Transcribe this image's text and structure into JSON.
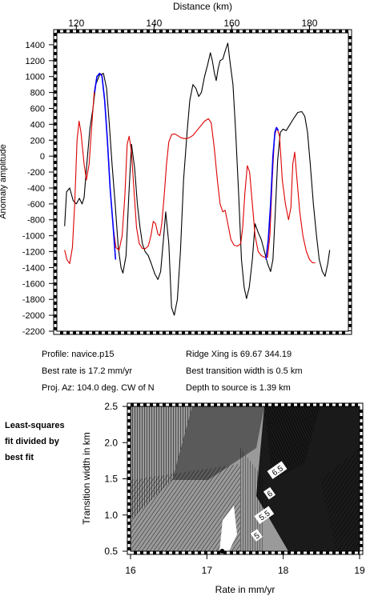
{
  "info": {
    "profile": "Profile: navice.p15",
    "best_rate": "Best rate is 17.2 mm/yr",
    "proj_az": "Proj. Az: 104.0 deg. CW of N",
    "ridge_xing": "Ridge Xing is 69.67 344.19",
    "best_width": "Best transition width is 0.5 km",
    "depth": "Depth to source is    1.39 km"
  },
  "side_note": {
    "line1": "Least-squares",
    "line2": "fit divided by",
    "line3": "best fit"
  },
  "colors": {
    "observed": "#000000",
    "model": "#dd0000",
    "segment": "#0000ff",
    "axis": "#000000"
  },
  "chart_data": [
    {
      "type": "line",
      "xlabel": "Distance (km)",
      "ylabel": "Anomaly amplitude",
      "xlim": [
        115,
        190
      ],
      "ylim": [
        -2200,
        1550
      ],
      "xticks": [
        120,
        140,
        160,
        180
      ],
      "yticks": [
        1400,
        1200,
        1000,
        800,
        600,
        400,
        200,
        0,
        -200,
        -400,
        -600,
        -800,
        -1000,
        -1200,
        -1400,
        -1600,
        -1800,
        -2000,
        -2200
      ],
      "x_axis_position": "top",
      "series": [
        {
          "color": "#000000",
          "points": [
            [
              117,
              -880
            ],
            [
              117.5,
              -450
            ],
            [
              118.3,
              -400
            ],
            [
              119.2,
              -560
            ],
            [
              120,
              -600
            ],
            [
              120.8,
              -530
            ],
            [
              121.5,
              -600
            ],
            [
              122,
              -520
            ],
            [
              122.7,
              -100
            ],
            [
              123.5,
              350
            ],
            [
              124.3,
              600
            ],
            [
              125,
              900
            ],
            [
              126,
              1020
            ],
            [
              127,
              1040
            ],
            [
              127.8,
              850
            ],
            [
              128.5,
              400
            ],
            [
              129.2,
              -100
            ],
            [
              130,
              -600
            ],
            [
              130.8,
              -1150
            ],
            [
              131.5,
              -1400
            ],
            [
              132,
              -1470
            ],
            [
              132.8,
              -1250
            ],
            [
              133.5,
              -500
            ],
            [
              134.2,
              150
            ],
            [
              135,
              -150
            ],
            [
              135.7,
              -600
            ],
            [
              136.4,
              -900
            ],
            [
              137,
              -1100
            ],
            [
              137.7,
              -1200
            ],
            [
              138.5,
              -1250
            ],
            [
              139.3,
              -1350
            ],
            [
              140.2,
              -1480
            ],
            [
              141,
              -1550
            ],
            [
              141.7,
              -1450
            ],
            [
              142.5,
              -1000
            ],
            [
              143,
              -700
            ],
            [
              143.8,
              -1100
            ],
            [
              144.5,
              -1900
            ],
            [
              145.2,
              -2000
            ],
            [
              146,
              -1800
            ],
            [
              146.8,
              -1200
            ],
            [
              147.6,
              -300
            ],
            [
              148.5,
              300
            ],
            [
              149.2,
              700
            ],
            [
              150,
              900
            ],
            [
              150.8,
              850
            ],
            [
              151.5,
              750
            ],
            [
              152.2,
              800
            ],
            [
              153,
              1000
            ],
            [
              153.8,
              1150
            ],
            [
              154.5,
              1300
            ],
            [
              155,
              1200
            ],
            [
              155.5,
              1050
            ],
            [
              156,
              950
            ],
            [
              156.5,
              1100
            ],
            [
              157,
              1200
            ],
            [
              157.7,
              1220
            ],
            [
              158.5,
              1350
            ],
            [
              159,
              1420
            ],
            [
              159.5,
              1200
            ],
            [
              160.3,
              900
            ],
            [
              161,
              300
            ],
            [
              161.8,
              -500
            ],
            [
              162.5,
              -1300
            ],
            [
              163.2,
              -1650
            ],
            [
              163.8,
              -1790
            ],
            [
              164.5,
              -1650
            ],
            [
              165.3,
              -1300
            ],
            [
              166,
              -850
            ],
            [
              166.8,
              -960
            ],
            [
              167.6,
              -1050
            ],
            [
              168.4,
              -1200
            ],
            [
              169.2,
              -1350
            ],
            [
              170,
              -1450
            ],
            [
              170.6,
              -1300
            ],
            [
              171.2,
              -700
            ],
            [
              171.8,
              -50
            ],
            [
              172.5,
              300
            ],
            [
              173.2,
              340
            ],
            [
              174,
              320
            ],
            [
              175,
              400
            ],
            [
              176,
              480
            ],
            [
              177,
              550
            ],
            [
              178,
              560
            ],
            [
              178.8,
              500
            ],
            [
              179.5,
              300
            ],
            [
              180.2,
              -100
            ],
            [
              181,
              -600
            ],
            [
              181.8,
              -1000
            ],
            [
              182.5,
              -1300
            ],
            [
              183.3,
              -1450
            ],
            [
              184,
              -1510
            ],
            [
              184.7,
              -1350
            ],
            [
              185.2,
              -1180
            ]
          ]
        },
        {
          "color": "#dd0000",
          "points": [
            [
              117,
              -1180
            ],
            [
              117.6,
              -1300
            ],
            [
              118.3,
              -1350
            ],
            [
              119,
              -1150
            ],
            [
              119.6,
              -600
            ],
            [
              120.2,
              200
            ],
            [
              120.7,
              440
            ],
            [
              121.2,
              300
            ],
            [
              122,
              -100
            ],
            [
              122.6,
              -300
            ],
            [
              123.3,
              -100
            ],
            [
              124,
              400
            ],
            [
              124.6,
              800
            ],
            [
              125.3,
              1000
            ],
            [
              126,
              1040
            ],
            [
              126.6,
              1020
            ],
            [
              127.3,
              700
            ],
            [
              128,
              200
            ],
            [
              128.7,
              -400
            ],
            [
              129.5,
              -900
            ],
            [
              130.2,
              -1150
            ],
            [
              131,
              -1180
            ],
            [
              131.8,
              -1000
            ],
            [
              132.5,
              -500
            ],
            [
              133.1,
              150
            ],
            [
              133.6,
              250
            ],
            [
              134.2,
              50
            ],
            [
              134.8,
              -400
            ],
            [
              135.5,
              -900
            ],
            [
              136.2,
              -1100
            ],
            [
              137,
              -1160
            ],
            [
              137.8,
              -1160
            ],
            [
              138.5,
              -1130
            ],
            [
              139.2,
              -1000
            ],
            [
              139.8,
              -820
            ],
            [
              140.4,
              -850
            ],
            [
              141,
              -980
            ],
            [
              141.5,
              -1000
            ],
            [
              142,
              -850
            ],
            [
              142.6,
              -500
            ],
            [
              143.2,
              -100
            ],
            [
              143.8,
              180
            ],
            [
              144.5,
              270
            ],
            [
              145.3,
              280
            ],
            [
              146,
              260
            ],
            [
              147,
              230
            ],
            [
              148,
              220
            ],
            [
              149,
              230
            ],
            [
              150,
              260
            ],
            [
              151,
              320
            ],
            [
              152,
              380
            ],
            [
              153,
              440
            ],
            [
              154,
              470
            ],
            [
              154.7,
              420
            ],
            [
              155.5,
              100
            ],
            [
              156.3,
              -300
            ],
            [
              157,
              -600
            ],
            [
              157.7,
              -700
            ],
            [
              158.3,
              -680
            ],
            [
              159,
              -850
            ],
            [
              159.8,
              -1050
            ],
            [
              160.6,
              -1120
            ],
            [
              161.5,
              -1130
            ],
            [
              162.3,
              -1100
            ],
            [
              162.8,
              -900
            ],
            [
              163.4,
              -450
            ],
            [
              164,
              -120
            ],
            [
              164.6,
              -200
            ],
            [
              165.3,
              -600
            ],
            [
              166,
              -1000
            ],
            [
              166.8,
              -1200
            ],
            [
              167.6,
              -1250
            ],
            [
              168.4,
              -1270
            ],
            [
              169.2,
              -1270
            ],
            [
              169.8,
              -1000
            ],
            [
              170.4,
              -300
            ],
            [
              171,
              250
            ],
            [
              171.6,
              360
            ],
            [
              172.3,
              250
            ],
            [
              173,
              -300
            ],
            [
              173.8,
              -600
            ],
            [
              174.6,
              -800
            ],
            [
              175.2,
              -650
            ],
            [
              175.7,
              -100
            ],
            [
              176.2,
              50
            ],
            [
              176.8,
              -300
            ],
            [
              177.5,
              -700
            ],
            [
              178.3,
              -1000
            ],
            [
              179.2,
              -1200
            ],
            [
              180,
              -1300
            ],
            [
              180.8,
              -1340
            ],
            [
              181.5,
              -1340
            ]
          ]
        },
        {
          "color": "#0000ff",
          "points": [
            [
              124.7,
              800
            ],
            [
              125.3,
              1000
            ],
            [
              126,
              1040
            ],
            [
              126.6,
              1010
            ],
            [
              127.3,
              700
            ],
            [
              128,
              200
            ],
            [
              128.7,
              -400
            ],
            [
              129.5,
              -900
            ],
            [
              130.1,
              -1300
            ]
          ]
        },
        {
          "color": "#0000ff",
          "points": [
            [
              168.8,
              -1300
            ],
            [
              169.4,
              -1050
            ],
            [
              170,
              -600
            ],
            [
              170.6,
              0
            ],
            [
              171.1,
              300
            ],
            [
              171.5,
              360
            ],
            [
              172,
              320
            ]
          ]
        }
      ]
    },
    {
      "type": "heatmap",
      "xlabel": "Rate in mm/yr",
      "ylabel": "Transition width in km",
      "xlim": [
        16,
        19
      ],
      "ylim": [
        0.5,
        2.5
      ],
      "xticks": [
        16,
        17,
        18,
        19
      ],
      "yticks": [
        0.5,
        1.0,
        1.5,
        2.0,
        2.5
      ],
      "ytick_labels": [
        "0.5",
        "1.0",
        "1.5",
        "2.0",
        "2.5"
      ],
      "contour_labels": [
        {
          "text": "6.5",
          "x": 17.92,
          "y": 1.62
        },
        {
          "text": "6",
          "x": 17.82,
          "y": 1.3
        },
        {
          "text": "5.5",
          "x": 17.75,
          "y": 1.0
        },
        {
          "text": "5",
          "x": 17.65,
          "y": 0.72
        }
      ],
      "best_fit_point": {
        "x": 17.2,
        "y": 0.5
      }
    }
  ]
}
